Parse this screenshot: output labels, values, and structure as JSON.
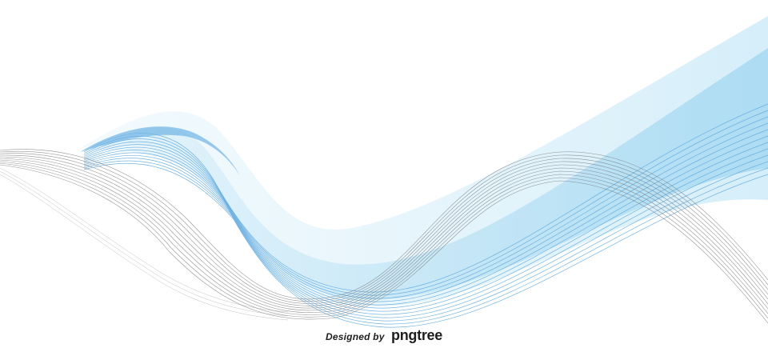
{
  "watermark": {
    "prefix": "Designed by",
    "brand": "pngtree"
  },
  "colors": {
    "background": "#ffffff",
    "light_blue": "#bde3f5",
    "pale_blue": "#dcf0fa",
    "blue_line": "#5aa6dd",
    "gray_line": "#7b7b7b",
    "text": "#1e1e1e"
  }
}
